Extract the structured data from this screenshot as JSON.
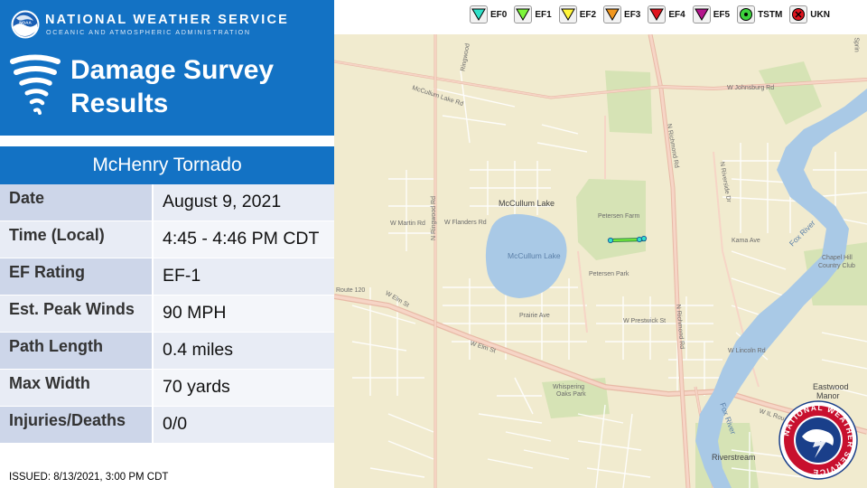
{
  "header": {
    "org_name": "NATIONAL WEATHER SERVICE",
    "org_sub": "OCEANIC AND ATMOSPHERIC ADMINISTRATION",
    "title_line1": "Damage Survey",
    "title_line2": "Results",
    "logo_text": "NOAA"
  },
  "event": {
    "name": "McHenry Tornado"
  },
  "details": [
    {
      "label": "Date",
      "value": "August 9, 2021"
    },
    {
      "label": "Time (Local)",
      "value": "4:45 - 4:46 PM CDT"
    },
    {
      "label": "EF Rating",
      "value": "EF-1"
    },
    {
      "label": "Est. Peak Winds",
      "value": "90 MPH"
    },
    {
      "label": "Path Length",
      "value": "0.4 miles"
    },
    {
      "label": "Max Width",
      "value": "70 yards"
    },
    {
      "label": "Injuries/Deaths",
      "value": "0/0"
    }
  ],
  "issued": "ISSUED: 8/13/2021, 3:00 PM CDT",
  "legend": [
    {
      "label": "EF0",
      "color": "#30e0c8",
      "shape": "triangle"
    },
    {
      "label": "EF1",
      "color": "#7cf53c",
      "shape": "triangle"
    },
    {
      "label": "EF2",
      "color": "#fff53a",
      "shape": "triangle"
    },
    {
      "label": "EF3",
      "color": "#f0961e",
      "shape": "triangle"
    },
    {
      "label": "EF4",
      "color": "#e0141e",
      "shape": "triangle"
    },
    {
      "label": "EF5",
      "color": "#b4148c",
      "shape": "triangle"
    },
    {
      "label": "TSTM",
      "color": "#3cd23c",
      "shape": "dot"
    },
    {
      "label": "UKN",
      "color": "#e0141e",
      "shape": "x"
    }
  ],
  "map": {
    "labels": {
      "johnsburg": "W Johnsburg Rd",
      "mccullum_lake_rd": "McCullum Lake Rd",
      "mccullum_lake": "McCullum Lake",
      "mccullum_lake_water": "McCullum Lake",
      "petersen_farm": "Petersen Farm",
      "petersen_park": "Petersen Park",
      "kama": "Kama Ave",
      "chapel_hill": "Chapel Hill",
      "country_club": "Country Club",
      "fox_river": "Fox River",
      "fox_river2": "Fox River",
      "route120": "Route 120",
      "w_elm": "W Elm St",
      "w_elm2": "W Elm St",
      "il_route": "W IL Rou",
      "whispering": "Whispering",
      "oaks_park": "Oaks Park",
      "riverstream": "Riverstream",
      "eastwood": "Eastwood",
      "manor": "Manor",
      "n_richmond": "N Richmond Rd",
      "n_richmond2": "N Richmond Rd",
      "n_ringwood": "N Ringwood Rd",
      "n_riverside": "N Riverside Dr",
      "prairie": "Prairie Ave",
      "w_prestwick": "W Prestwick St",
      "w_lincoln": "W Lincoln Rd",
      "w_flanders": "W Flanders Rd",
      "w_martin": "W Martin Rd",
      "ringwood": "Ringwood",
      "spring": "Sprin"
    },
    "seal_text": "NATIONAL WEATHER SERVICE"
  }
}
